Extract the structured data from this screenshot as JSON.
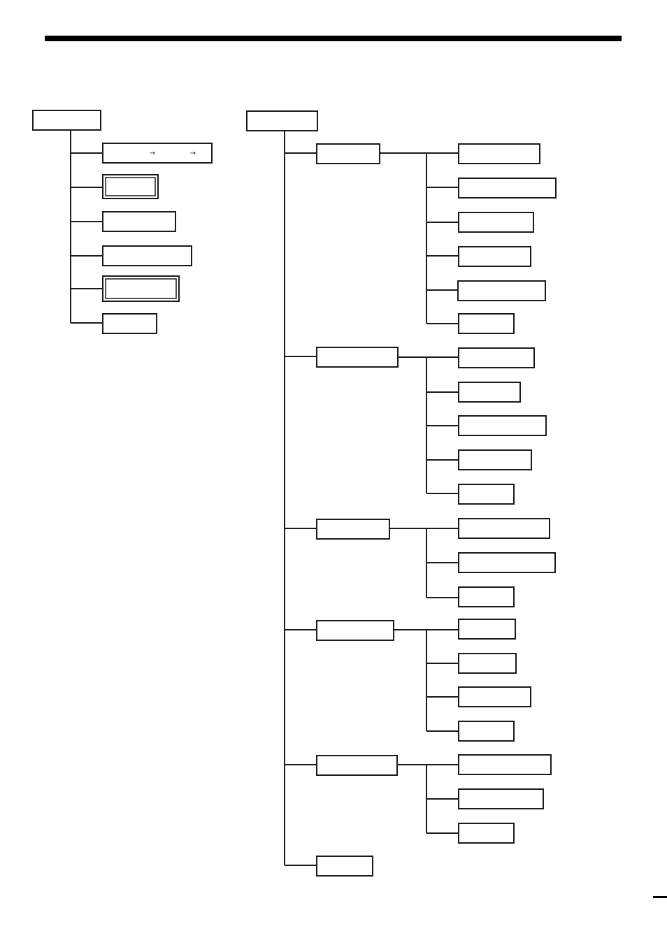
{
  "page": {
    "rule_color": "#000000",
    "line_color": "#1a1a1a"
  },
  "left_tree": {
    "root": {
      "label": ""
    },
    "items": [
      {
        "label": "",
        "glyphs": [
          "→",
          "→"
        ]
      },
      {
        "label": "",
        "double_border": true
      },
      {
        "label": ""
      },
      {
        "label": ""
      },
      {
        "label": "",
        "double_border": true
      },
      {
        "label": ""
      }
    ]
  },
  "right_tree": {
    "root": {
      "label": ""
    },
    "groups": [
      {
        "label": "",
        "children": [
          {
            "label": ""
          },
          {
            "label": ""
          },
          {
            "label": ""
          },
          {
            "label": ""
          },
          {
            "label": ""
          },
          {
            "label": ""
          }
        ]
      },
      {
        "label": "",
        "children": [
          {
            "label": ""
          },
          {
            "label": ""
          },
          {
            "label": ""
          },
          {
            "label": ""
          },
          {
            "label": ""
          }
        ]
      },
      {
        "label": "",
        "children": [
          {
            "label": ""
          },
          {
            "label": ""
          },
          {
            "label": ""
          }
        ]
      },
      {
        "label": "",
        "children": [
          {
            "label": ""
          },
          {
            "label": ""
          },
          {
            "label": ""
          },
          {
            "label": ""
          }
        ]
      },
      {
        "label": "",
        "children": [
          {
            "label": ""
          },
          {
            "label": ""
          },
          {
            "label": ""
          }
        ]
      },
      {
        "label": "",
        "children": []
      }
    ]
  }
}
